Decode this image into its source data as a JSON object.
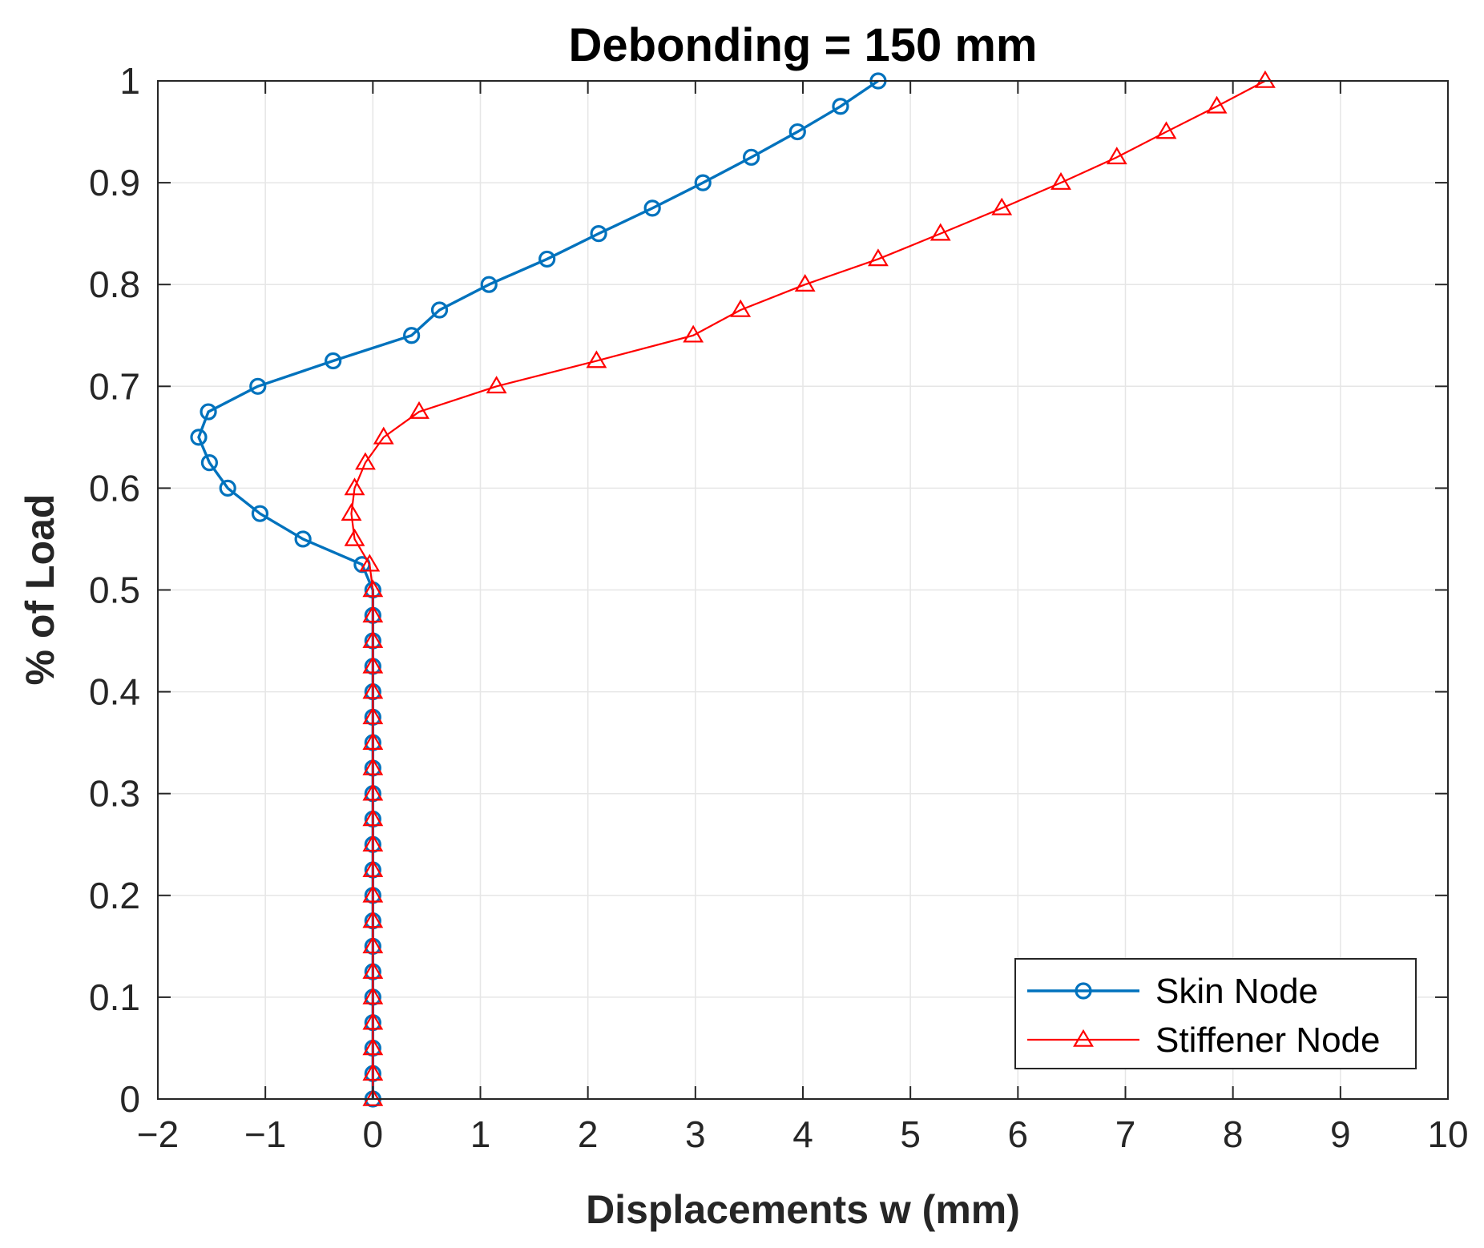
{
  "chart_data": {
    "type": "line",
    "title": "Debonding = 150 mm",
    "xlabel": "Displacements w (mm)",
    "ylabel": "% of Load",
    "xlim": [
      -2,
      10
    ],
    "ylim": [
      0,
      1
    ],
    "xticks": [
      -2,
      -1,
      0,
      1,
      2,
      3,
      4,
      5,
      6,
      7,
      8,
      9,
      10
    ],
    "xtick_labels": [
      "−2",
      "−1",
      "0",
      "1",
      "2",
      "3",
      "4",
      "5",
      "6",
      "7",
      "8",
      "9",
      "10"
    ],
    "yticks": [
      0,
      0.1,
      0.2,
      0.3,
      0.4,
      0.5,
      0.6,
      0.7,
      0.8,
      0.9,
      1
    ],
    "ytick_labels": [
      "0",
      "0.1",
      "0.2",
      "0.3",
      "0.4",
      "0.5",
      "0.6",
      "0.7",
      "0.8",
      "0.9",
      "1"
    ],
    "grid": true,
    "legend_position": "bottom-right",
    "series": [
      {
        "name": "Skin Node",
        "color": "#0072BD",
        "marker": "circle",
        "points": [
          [
            0,
            0
          ],
          [
            0,
            0.025
          ],
          [
            0,
            0.05
          ],
          [
            0,
            0.075
          ],
          [
            0,
            0.1
          ],
          [
            0,
            0.125
          ],
          [
            0,
            0.15
          ],
          [
            0,
            0.175
          ],
          [
            0,
            0.2
          ],
          [
            0,
            0.225
          ],
          [
            0,
            0.25
          ],
          [
            0,
            0.275
          ],
          [
            0,
            0.3
          ],
          [
            0,
            0.325
          ],
          [
            0,
            0.35
          ],
          [
            0,
            0.375
          ],
          [
            0,
            0.4
          ],
          [
            0,
            0.425
          ],
          [
            0,
            0.45
          ],
          [
            0,
            0.475
          ],
          [
            0,
            0.5
          ],
          [
            -0.1,
            0.525
          ],
          [
            -0.65,
            0.55
          ],
          [
            -1.05,
            0.575
          ],
          [
            -1.35,
            0.6
          ],
          [
            -1.52,
            0.625
          ],
          [
            -1.62,
            0.65
          ],
          [
            -1.53,
            0.675
          ],
          [
            -1.07,
            0.7
          ],
          [
            -0.37,
            0.725
          ],
          [
            0.36,
            0.75
          ],
          [
            0.62,
            0.775
          ],
          [
            1.08,
            0.8
          ],
          [
            1.62,
            0.825
          ],
          [
            2.1,
            0.85
          ],
          [
            2.6,
            0.875
          ],
          [
            3.07,
            0.9
          ],
          [
            3.52,
            0.925
          ],
          [
            3.95,
            0.95
          ],
          [
            4.35,
            0.975
          ],
          [
            4.7,
            1.0
          ]
        ]
      },
      {
        "name": "Stiffener Node",
        "color": "#FF0000",
        "marker": "triangle",
        "points": [
          [
            0,
            0
          ],
          [
            0,
            0.025
          ],
          [
            0,
            0.05
          ],
          [
            0,
            0.075
          ],
          [
            0,
            0.1
          ],
          [
            0,
            0.125
          ],
          [
            0,
            0.15
          ],
          [
            0,
            0.175
          ],
          [
            0,
            0.2
          ],
          [
            0,
            0.225
          ],
          [
            0,
            0.25
          ],
          [
            0,
            0.275
          ],
          [
            0,
            0.3
          ],
          [
            0,
            0.325
          ],
          [
            0,
            0.35
          ],
          [
            0,
            0.375
          ],
          [
            0,
            0.4
          ],
          [
            0,
            0.425
          ],
          [
            0,
            0.45
          ],
          [
            0,
            0.475
          ],
          [
            0,
            0.5
          ],
          [
            -0.03,
            0.525
          ],
          [
            -0.17,
            0.55
          ],
          [
            -0.2,
            0.575
          ],
          [
            -0.17,
            0.6
          ],
          [
            -0.07,
            0.625
          ],
          [
            0.1,
            0.65
          ],
          [
            0.43,
            0.675
          ],
          [
            1.15,
            0.7
          ],
          [
            2.08,
            0.725
          ],
          [
            2.98,
            0.75
          ],
          [
            3.42,
            0.775
          ],
          [
            4.02,
            0.8
          ],
          [
            4.7,
            0.825
          ],
          [
            5.28,
            0.85
          ],
          [
            5.85,
            0.875
          ],
          [
            6.4,
            0.9
          ],
          [
            6.92,
            0.925
          ],
          [
            7.38,
            0.95
          ],
          [
            7.85,
            0.975
          ],
          [
            8.3,
            1.0
          ]
        ]
      }
    ]
  }
}
